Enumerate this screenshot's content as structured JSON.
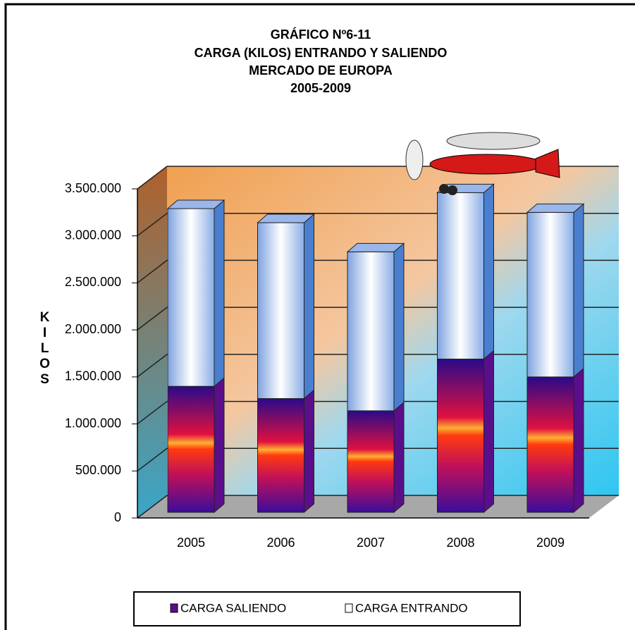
{
  "chart_data": {
    "type": "bar3d_stacked",
    "title": [
      "GRÁFICO Nº6-11",
      "CARGA (KILOS) ENTRANDO Y SALIENDO",
      "MERCADO DE EUROPA",
      "2005-2009"
    ],
    "y_label": "KILOS",
    "categories": [
      "2005",
      "2006",
      "2007",
      "2008",
      "2009"
    ],
    "series": [
      {
        "name": "CARGA SALIENDO",
        "color": "#5a0e8a",
        "values": [
          1340000,
          1210000,
          1080000,
          1630000,
          1440000
        ]
      },
      {
        "name": "CARGA ENTRANDO",
        "color": "#4a7fd0",
        "values": [
          1890000,
          1870000,
          1690000,
          1770000,
          1750000
        ]
      }
    ],
    "ylim": [
      0,
      3500000
    ],
    "yticks": [
      0,
      {
        "value": 500000,
        "label": "500.000"
      },
      {
        "value": 1000000,
        "label": "1.000.000"
      },
      {
        "value": 1500000,
        "label": "1.500.000"
      },
      {
        "value": 2000000,
        "label": "2.000.000"
      },
      {
        "value": 2500000,
        "label": "2.500.000"
      },
      {
        "value": 3000000,
        "label": "3.000.000"
      },
      {
        "value": 3500000,
        "label": "3.500.000"
      }
    ],
    "grid": true
  }
}
